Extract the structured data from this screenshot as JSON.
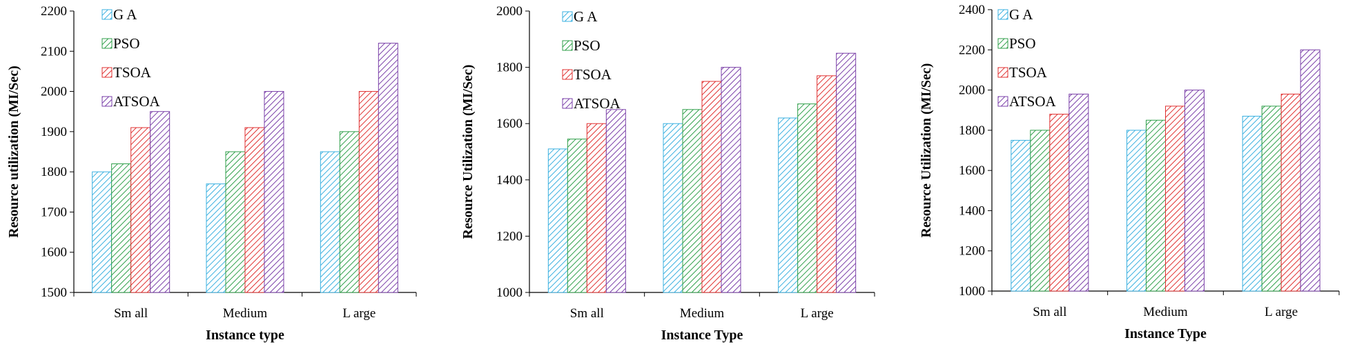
{
  "chart_data": [
    {
      "type": "bar",
      "categories": [
        "Small",
        "Medium",
        "Large"
      ],
      "category_labels": [
        "Sm all",
        "Medium",
        "L arge"
      ],
      "series": [
        {
          "name": "GA",
          "legend_label": "G A",
          "values": [
            1800,
            1770,
            1850
          ]
        },
        {
          "name": "PSO",
          "legend_label": "PSO",
          "values": [
            1820,
            1850,
            1900
          ]
        },
        {
          "name": "TSOA",
          "legend_label": "TSOA",
          "values": [
            1910,
            1910,
            2000
          ]
        },
        {
          "name": "ATSOA",
          "legend_label": "ATSOA",
          "values": [
            1950,
            2000,
            2120
          ]
        }
      ],
      "ylim": [
        1500,
        2200
      ],
      "yticks": [
        1500,
        1600,
        1700,
        1800,
        1900,
        2000,
        2100,
        2200
      ],
      "ylabel": "Resource utilization (MI/Sec)",
      "xlabel": "Instance type",
      "legend": "top-left"
    },
    {
      "type": "bar",
      "categories": [
        "Small",
        "Medium",
        "Large"
      ],
      "category_labels": [
        "Sm all",
        "Medium",
        "L arge"
      ],
      "series": [
        {
          "name": "GA",
          "legend_label": "G A",
          "values": [
            1510,
            1600,
            1620
          ]
        },
        {
          "name": "PSO",
          "legend_label": "PSO",
          "values": [
            1545,
            1650,
            1670
          ]
        },
        {
          "name": "TSOA",
          "legend_label": "TSOA",
          "values": [
            1600,
            1750,
            1770
          ]
        },
        {
          "name": "ATSOA",
          "legend_label": "ATSOA",
          "values": [
            1650,
            1800,
            1850
          ]
        }
      ],
      "ylim": [
        1000,
        2000
      ],
      "yticks": [
        1000,
        1200,
        1400,
        1600,
        1800,
        2000
      ],
      "ylabel": "Resource Utilization (MI/Sec)",
      "xlabel": "Instance Type",
      "legend": "top-left"
    },
    {
      "type": "bar",
      "categories": [
        "Small",
        "Medium",
        "Large"
      ],
      "category_labels": [
        "Sm all",
        "Medium",
        "L arge"
      ],
      "series": [
        {
          "name": "GA",
          "legend_label": "G A",
          "values": [
            1750,
            1800,
            1870
          ]
        },
        {
          "name": "PSO",
          "legend_label": "PSO",
          "values": [
            1800,
            1850,
            1920
          ]
        },
        {
          "name": "TSOA",
          "legend_label": "TSOA",
          "values": [
            1880,
            1920,
            1980
          ]
        },
        {
          "name": "ATSOA",
          "legend_label": "ATSOA",
          "values": [
            1980,
            2000,
            2200
          ]
        }
      ],
      "ylim": [
        1000,
        2400
      ],
      "yticks": [
        1000,
        1200,
        1400,
        1600,
        1800,
        2000,
        2200,
        2400
      ],
      "ylabel": "Resource Utilization (MI/Sec)",
      "xlabel": "Instance Type",
      "legend": "top-left"
    }
  ],
  "colors": {
    "GA": "#3ab0e0",
    "PSO": "#2f9f4a",
    "TSOA": "#e03030",
    "ATSOA": "#7a3fa8"
  }
}
